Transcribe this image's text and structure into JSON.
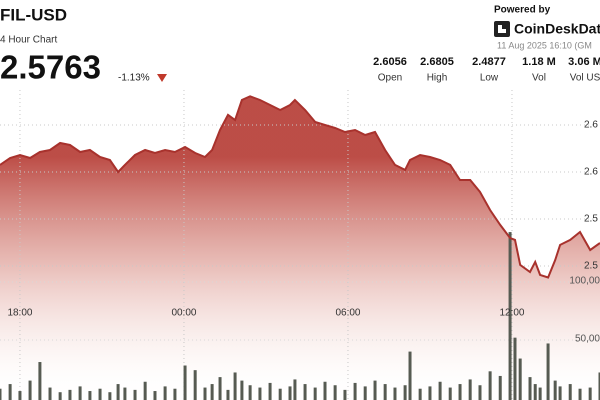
{
  "header": {
    "pair": "FIL-USD",
    "subtitle": "4 Hour Chart",
    "price": "2.5763",
    "change": "-1.13%",
    "powered_by": "Powered by",
    "brand": "CoinDeskDat",
    "timestamp": "11 Aug 2025 16:10 (GM",
    "stats": [
      {
        "value": "2.6056",
        "label": "Open"
      },
      {
        "value": "2.6805",
        "label": "High"
      },
      {
        "value": "2.4877",
        "label": "Low"
      },
      {
        "value": "1.18 M",
        "label": "Vol"
      },
      {
        "value": "3.06 M",
        "label": "Vol US"
      }
    ]
  },
  "chart_data": {
    "type": "area",
    "color": "#a8322d",
    "x": [
      17.27,
      17.64,
      18.0,
      18.37,
      18.73,
      19.1,
      19.47,
      19.83,
      20.2,
      20.56,
      20.93,
      21.29,
      21.59,
      21.84,
      22.21,
      22.58,
      22.94,
      23.31,
      23.67,
      24.04,
      24.41,
      24.77,
      25.03,
      25.32,
      25.61,
      25.87,
      26.12,
      26.42,
      26.78,
      27.15,
      27.52,
      27.88,
      28.06,
      28.43,
      28.8,
      29.16,
      29.53,
      29.89,
      30.26,
      30.63,
      30.99,
      31.36,
      31.72,
      32.09,
      32.27,
      32.64,
      33.0,
      33.37,
      33.74,
      34.1,
      34.47,
      34.83,
      35.2,
      35.57,
      35.93,
      36.11,
      36.3,
      36.66,
      36.85,
      37.03,
      37.32,
      37.58,
      37.76,
      38.13,
      38.49,
      38.86,
      39.22
    ],
    "values": [
      2.6075,
      2.6149,
      2.6181,
      2.6149,
      2.6213,
      2.6234,
      2.6309,
      2.6287,
      2.6213,
      2.6234,
      2.616,
      2.6128,
      2.6,
      2.6075,
      2.6181,
      2.6234,
      2.6202,
      2.6234,
      2.6213,
      2.6266,
      2.6202,
      2.616,
      2.6234,
      2.6447,
      2.6607,
      2.6553,
      2.6766,
      2.6805,
      2.6766,
      2.6713,
      2.666,
      2.6713,
      2.6766,
      2.666,
      2.6532,
      2.65,
      2.6468,
      2.6426,
      2.6447,
      2.6394,
      2.6426,
      2.6234,
      2.6075,
      2.6022,
      2.6128,
      2.6181,
      2.616,
      2.6128,
      2.6075,
      2.5915,
      2.5915,
      2.5788,
      2.5596,
      2.5437,
      2.5298,
      2.5277,
      2.5011,
      2.4936,
      2.5043,
      2.4905,
      2.4877,
      2.5064,
      2.5224,
      2.5277,
      2.5362,
      2.517,
      2.5245
    ],
    "xlim": [
      17.27,
      39.22
    ],
    "xticks": [
      {
        "value": 18,
        "label": "18:00"
      },
      {
        "value": 24,
        "label": "00:00"
      },
      {
        "value": 30,
        "label": "06:00"
      },
      {
        "value": 36,
        "label": "12:00"
      }
    ],
    "ylim": [
      2.3574,
      2.783
    ],
    "yticks": [
      {
        "value": 2.65,
        "label": "2.6"
      },
      {
        "value": 2.6,
        "label": "2.6"
      },
      {
        "value": 2.55,
        "label": "2.5"
      },
      {
        "value": 2.5,
        "label": "2.5"
      }
    ],
    "grid": true,
    "volume": {
      "axis": "y2",
      "color": "#565b52",
      "values": [
        8000,
        12000,
        6000,
        15000,
        31000,
        9000,
        5000,
        7000,
        10000,
        6000,
        8000,
        5000,
        12000,
        9000,
        7000,
        14000,
        6000,
        10000,
        8000,
        28000,
        24000,
        9000,
        12000,
        18000,
        7000,
        22000,
        15000,
        11000,
        9000,
        13000,
        8000,
        10000,
        16000,
        12000,
        9000,
        14000,
        11000,
        7000,
        13000,
        10000,
        15000,
        12000,
        9000,
        11000,
        40000,
        8000,
        10000,
        14000,
        9000,
        12000,
        16000,
        11000,
        23000,
        19000,
        143000,
        52000,
        34000,
        18000,
        12000,
        9000,
        47000,
        15000,
        10000,
        12000,
        8000,
        9000,
        22000
      ]
    },
    "y2lim": [
      0,
      343000
    ],
    "y2ticks": [
      {
        "value": 100000,
        "label": "100,00"
      },
      {
        "value": 50000,
        "label": "50,00"
      }
    ]
  }
}
